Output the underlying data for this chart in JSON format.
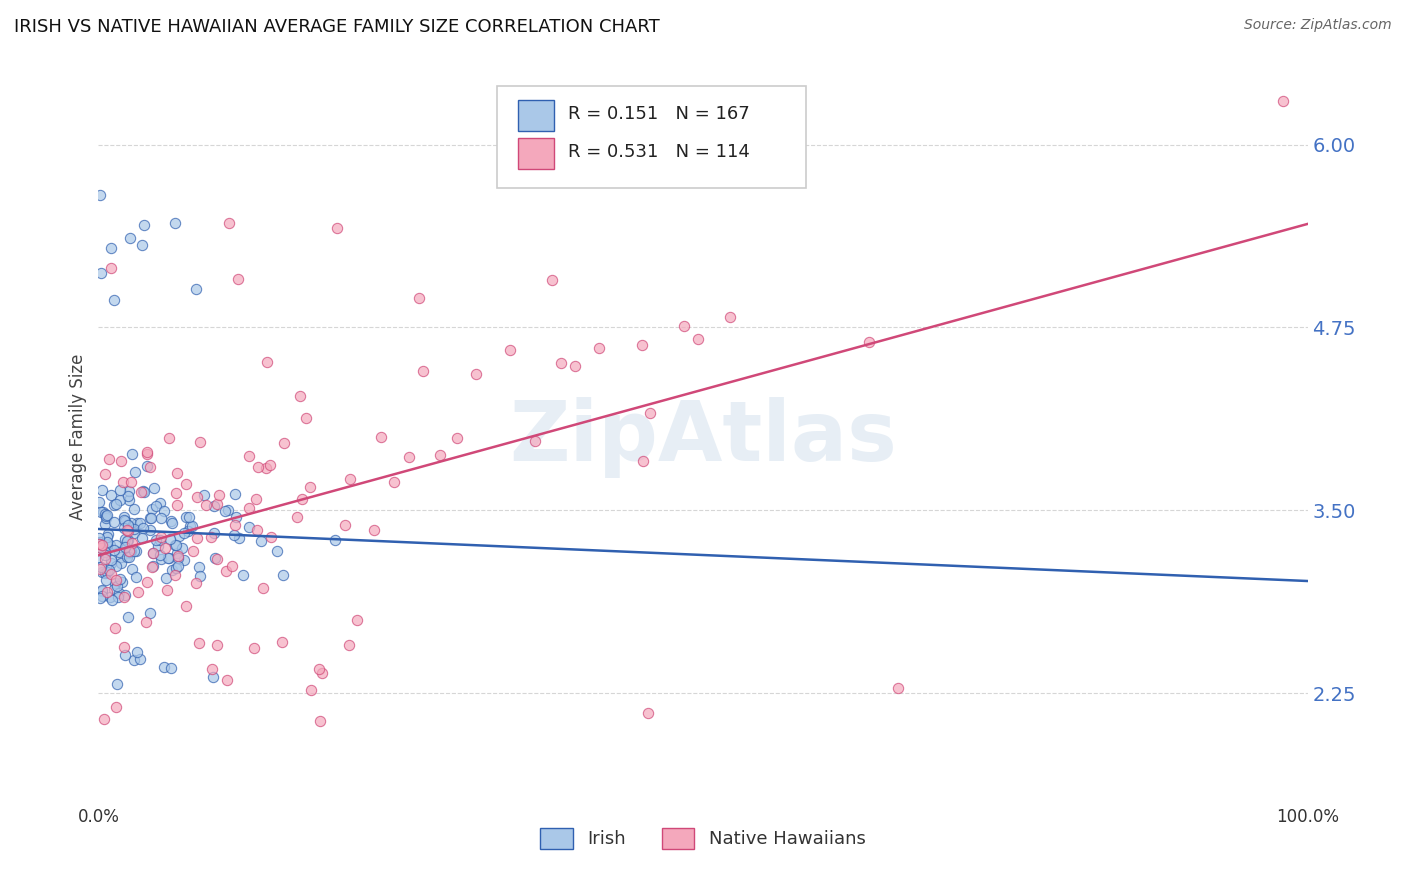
{
  "title": "IRISH VS NATIVE HAWAIIAN AVERAGE FAMILY SIZE CORRELATION CHART",
  "source": "Source: ZipAtlas.com",
  "ylabel": "Average Family Size",
  "xlim": [
    0.0,
    1.0
  ],
  "ylim": [
    1.5,
    6.5
  ],
  "yticks": [
    2.25,
    3.5,
    4.75,
    6.0
  ],
  "xtick_labels": [
    "0.0%",
    "100.0%"
  ],
  "irish_color": "#aac8e8",
  "native_color": "#f4a8bc",
  "irish_line_color": "#3060b0",
  "native_line_color": "#d04878",
  "irish_R": 0.151,
  "irish_N": 167,
  "native_R": 0.531,
  "native_N": 114,
  "grid_color": "#bbbbbb",
  "title_color": "#111111",
  "label_color": "#4472c4",
  "watermark": "ZipAtlas",
  "background_color": "#ffffff"
}
